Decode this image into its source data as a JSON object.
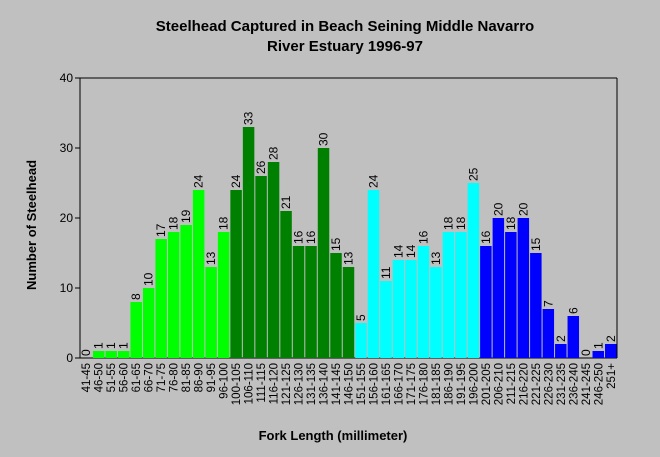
{
  "chart_data": {
    "type": "bar",
    "title_line1": "Steelhead Captured in Beach Seining Middle Navarro",
    "title_line2": "River Estuary 1996-97",
    "xlabel": "Fork Length (millimeter)",
    "ylabel": "Number of Steelhead",
    "ylim": [
      0,
      40
    ],
    "yticks": [
      0,
      10,
      20,
      30,
      40
    ],
    "grid": false,
    "categories": [
      "41-45",
      "46-50",
      "51-55",
      "56-60",
      "61-65",
      "66-70",
      "71-75",
      "76-80",
      "81-85",
      "86-90",
      "91-95",
      "96-100",
      "100-105",
      "106-110",
      "111-115",
      "116-120",
      "121-125",
      "126-130",
      "131-135",
      "136-140",
      "141-145",
      "146-150",
      "151-155",
      "156-160",
      "161-165",
      "166-170",
      "171-175",
      "176-180",
      "181-185",
      "186-190",
      "191-195",
      "196-200",
      "201-205",
      "206-210",
      "211-215",
      "216-220",
      "221-225",
      "226-230",
      "231-235",
      "236-240",
      "241-245",
      "246-250",
      "251+"
    ],
    "values": [
      0,
      1,
      1,
      1,
      8,
      10,
      17,
      18,
      19,
      24,
      13,
      18,
      24,
      33,
      26,
      28,
      21,
      16,
      16,
      30,
      15,
      13,
      5,
      24,
      11,
      14,
      14,
      16,
      13,
      18,
      18,
      25,
      16,
      20,
      18,
      20,
      15,
      7,
      2,
      6,
      0,
      1,
      2
    ],
    "data_labels": [
      "0",
      "1",
      "1",
      "1",
      "8",
      "10",
      "17",
      "18",
      "19",
      "24",
      "13",
      "18",
      "24",
      "33",
      "26",
      "28",
      "21",
      "16",
      "16",
      "30",
      "15",
      "13",
      "5",
      "24",
      "11",
      "14",
      "14",
      "16",
      "13",
      "18",
      "18",
      "25",
      "16",
      "20",
      "18",
      "20",
      "15",
      "7",
      "2",
      "6",
      "0",
      "1",
      "2"
    ],
    "colors": [
      "#00ff00",
      "#00ff00",
      "#00ff00",
      "#00ff00",
      "#00ff00",
      "#00ff00",
      "#00ff00",
      "#00ff00",
      "#00ff00",
      "#00ff00",
      "#00ff00",
      "#00ff00",
      "#008000",
      "#008000",
      "#008000",
      "#008000",
      "#008000",
      "#008000",
      "#008000",
      "#008000",
      "#008000",
      "#008000",
      "#00ffff",
      "#00ffff",
      "#00ffff",
      "#00ffff",
      "#00ffff",
      "#00ffff",
      "#00ffff",
      "#00ffff",
      "#00ffff",
      "#00ffff",
      "#0000ff",
      "#0000ff",
      "#0000ff",
      "#0000ff",
      "#0000ff",
      "#0000ff",
      "#0000ff",
      "#0000ff",
      "#0000ff",
      "#0000ff",
      "#0000ff"
    ]
  }
}
